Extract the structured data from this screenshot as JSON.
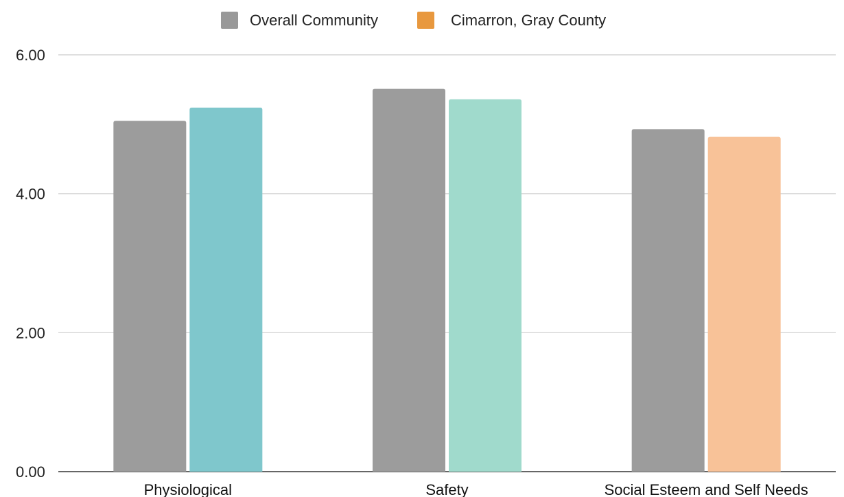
{
  "chart_data": {
    "type": "bar",
    "title": "",
    "xlabel": "",
    "ylabel": "",
    "categories": [
      "Physiological",
      "Safety",
      "Social Esteem and Self Needs"
    ],
    "series": [
      {
        "name": "Overall Community",
        "legend_color": "#999999",
        "values": [
          5.05,
          5.51,
          4.93
        ],
        "colors": [
          "#9c9c9c",
          "#9c9c9c",
          "#9c9c9c"
        ]
      },
      {
        "name": "Cimarron, Gray County",
        "legend_color": "#e8983e",
        "values": [
          5.24,
          5.36,
          4.82
        ],
        "colors": [
          "#7fc7cc",
          "#a0dacc",
          "#f8c298"
        ]
      }
    ],
    "ylim": [
      0,
      6
    ],
    "yticks": [
      0,
      2,
      4,
      6
    ],
    "ytick_labels": [
      "0.00",
      "2.00",
      "4.00",
      "6.00"
    ],
    "grid": true,
    "legend_position": "top"
  }
}
